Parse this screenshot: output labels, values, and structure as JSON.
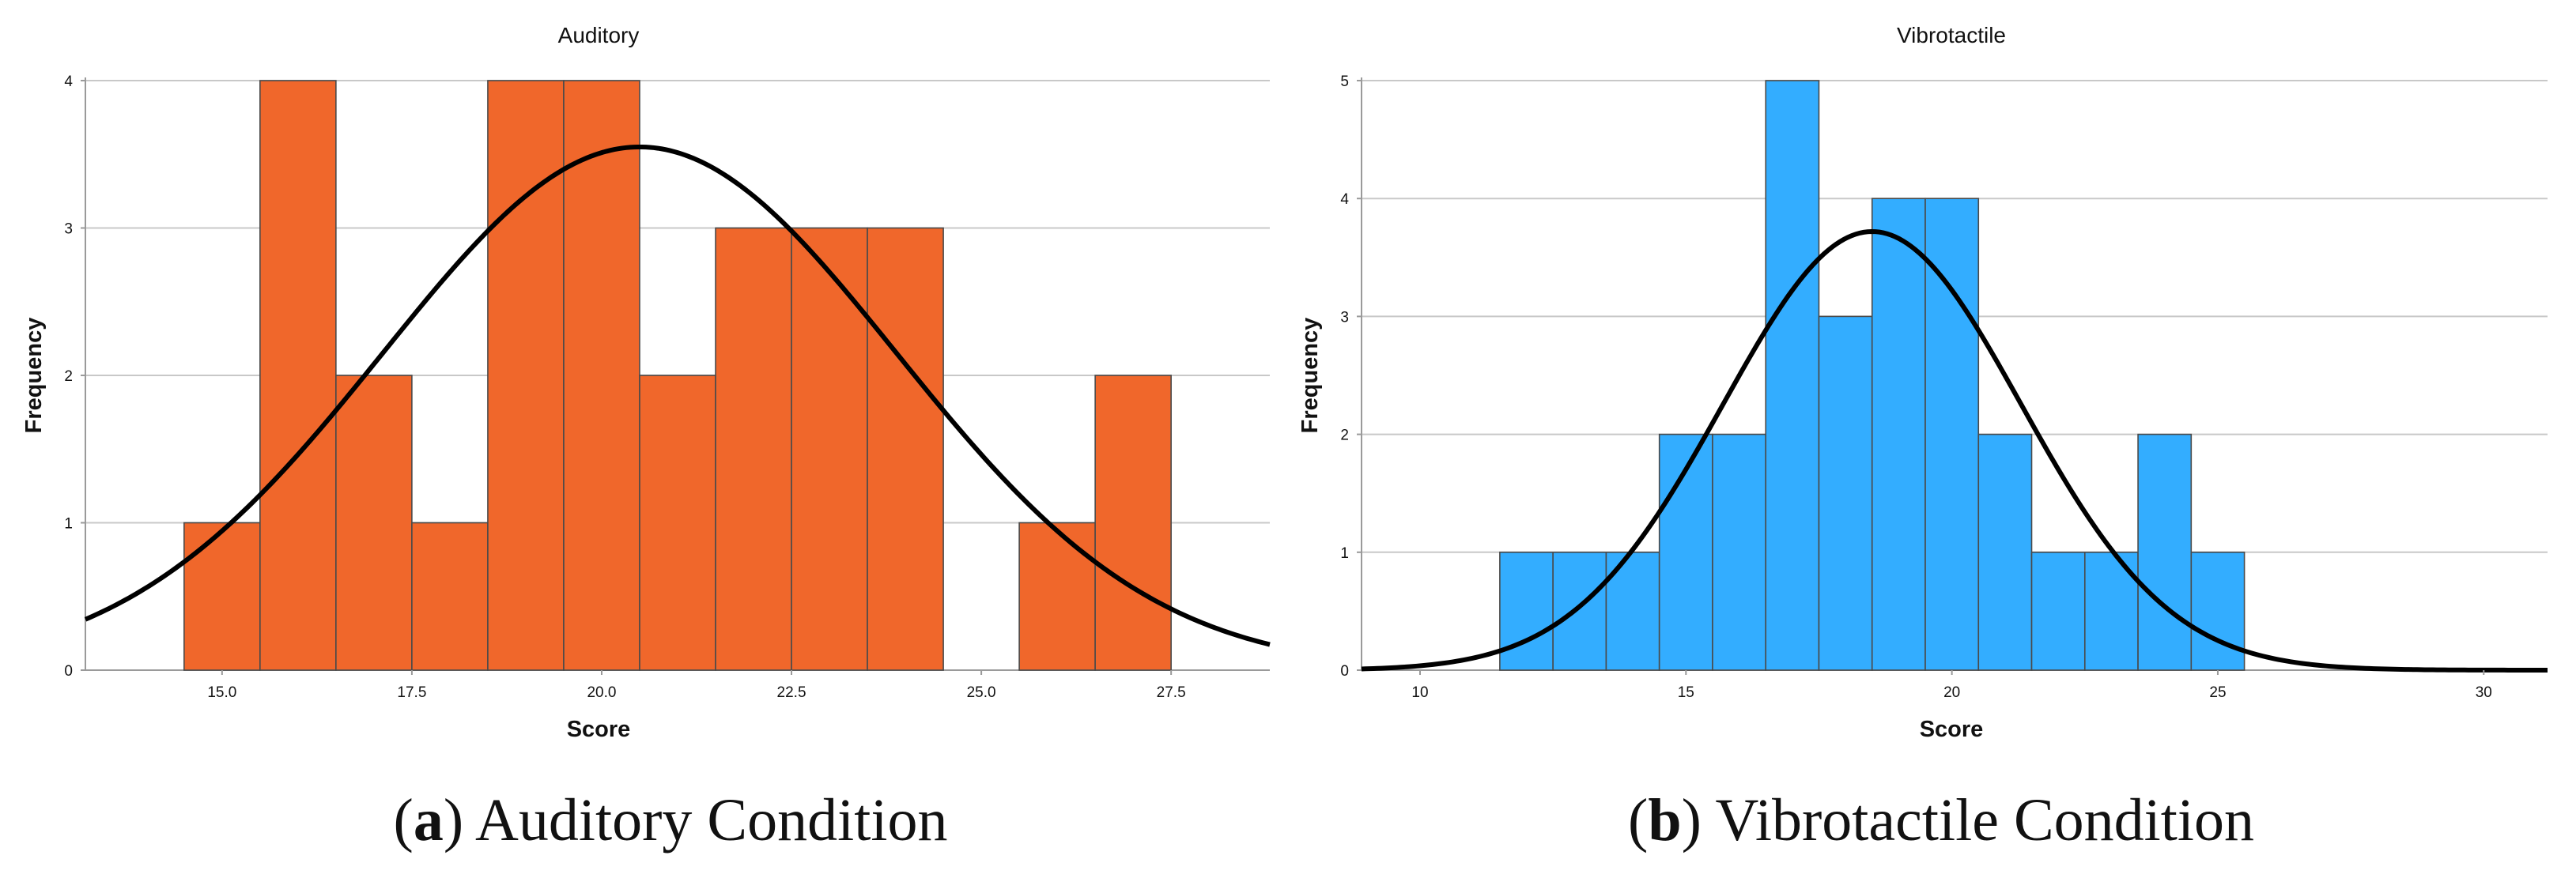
{
  "chart_data": [
    {
      "type": "bar",
      "title": "Auditory",
      "xlabel": "Score",
      "ylabel": "Frequency",
      "xlim": [
        13.2,
        28.8
      ],
      "ylim": [
        0,
        4
      ],
      "xticks": [
        15.0,
        17.5,
        20.0,
        22.5,
        25.0,
        27.5
      ],
      "xtick_labels": [
        "15.0",
        "17.5",
        "20.0",
        "22.5",
        "25.0",
        "27.5"
      ],
      "yticks": [
        0,
        1,
        2,
        3,
        4
      ],
      "ytick_labels": [
        "0",
        "1",
        "2",
        "3",
        "4"
      ],
      "grid": true,
      "bar_color": "#F0672B",
      "bins": [
        {
          "x0": 14.5,
          "x1": 15.5,
          "count": 1
        },
        {
          "x0": 15.5,
          "x1": 16.5,
          "count": 4
        },
        {
          "x0": 16.5,
          "x1": 17.5,
          "count": 2
        },
        {
          "x0": 17.5,
          "x1": 18.5,
          "count": 1
        },
        {
          "x0": 18.5,
          "x1": 19.5,
          "count": 4
        },
        {
          "x0": 19.5,
          "x1": 20.5,
          "count": 4
        },
        {
          "x0": 20.5,
          "x1": 21.5,
          "count": 2
        },
        {
          "x0": 21.5,
          "x1": 22.5,
          "count": 3
        },
        {
          "x0": 22.5,
          "x1": 23.5,
          "count": 3
        },
        {
          "x0": 23.5,
          "x1": 24.5,
          "count": 3
        },
        {
          "x0": 25.5,
          "x1": 26.5,
          "count": 1
        },
        {
          "x0": 26.5,
          "x1": 27.5,
          "count": 2
        }
      ],
      "normal_curve": {
        "mean": 20.5,
        "sd": 3.38,
        "peak": 3.55
      }
    },
    {
      "type": "bar",
      "title": "Vibrotactile",
      "xlabel": "Score",
      "ylabel": "Frequency",
      "xlim": [
        8.9,
        31.2
      ],
      "ylim": [
        0,
        5
      ],
      "xticks": [
        10,
        15,
        20,
        25,
        30
      ],
      "xtick_labels": [
        "10",
        "15",
        "20",
        "25",
        "30"
      ],
      "yticks": [
        0,
        1,
        2,
        3,
        4,
        5
      ],
      "ytick_labels": [
        "0",
        "1",
        "2",
        "3",
        "4",
        "5"
      ],
      "grid": true,
      "bar_color": "#33ADFF",
      "bins": [
        {
          "x0": 11.5,
          "x1": 12.5,
          "count": 1
        },
        {
          "x0": 12.5,
          "x1": 13.5,
          "count": 1
        },
        {
          "x0": 13.5,
          "x1": 14.5,
          "count": 1
        },
        {
          "x0": 14.5,
          "x1": 15.5,
          "count": 2
        },
        {
          "x0": 15.5,
          "x1": 16.5,
          "count": 2
        },
        {
          "x0": 16.5,
          "x1": 17.5,
          "count": 5
        },
        {
          "x0": 17.5,
          "x1": 18.5,
          "count": 3
        },
        {
          "x0": 18.5,
          "x1": 19.5,
          "count": 4
        },
        {
          "x0": 19.5,
          "x1": 20.5,
          "count": 4
        },
        {
          "x0": 20.5,
          "x1": 21.5,
          "count": 2
        },
        {
          "x0": 21.5,
          "x1": 22.5,
          "count": 1
        },
        {
          "x0": 22.5,
          "x1": 23.5,
          "count": 1
        },
        {
          "x0": 23.5,
          "x1": 24.5,
          "count": 2
        },
        {
          "x0": 24.5,
          "x1": 25.5,
          "count": 1
        }
      ],
      "normal_curve": {
        "mean": 18.5,
        "sd": 2.8,
        "peak": 3.72
      }
    }
  ],
  "captions": [
    {
      "letter": "a",
      "text": " Auditory Condition"
    },
    {
      "letter": "b",
      "text": " Vibrotactile Condition"
    }
  ]
}
